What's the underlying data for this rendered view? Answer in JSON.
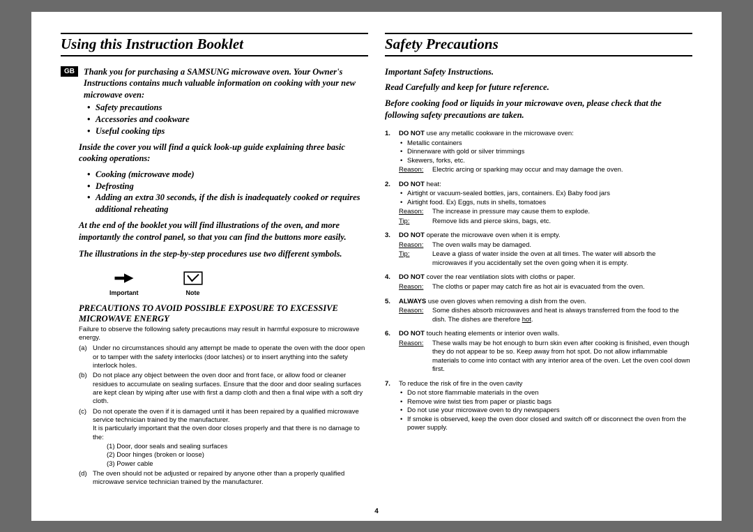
{
  "pageNumber": "4",
  "left": {
    "title": "Using this Instruction Booklet",
    "gbBadge": "GB",
    "intro": "Thank you for purchasing a SAMSUNG microwave oven. Your Owner's Instructions contains much valuable information on cooking with your new microwave oven:",
    "introBullets": [
      "Safety precautions",
      "Accessories and cookware",
      "Useful cooking tips"
    ],
    "insideCover": "Inside the cover you will find a quick look-up guide explaining three basic cooking operations:",
    "opsBullets": [
      "Cooking (microwave mode)",
      "Defrosting",
      "Adding an extra 30 seconds, if the dish is inadequately cooked or requires additional reheating"
    ],
    "endBooklet": "At the end of the booklet you will find illustrations of the oven, and more importantly the control panel, so that you can find the buttons more easily.",
    "illustrations": "The illustrations in the step-by-step procedures use two different symbols.",
    "symbolImportant": "Important",
    "symbolNote": "Note",
    "precautionsHdr": "PRECAUTIONS TO AVOID POSSIBLE EXPOSURE TO EXCESSIVE MICROWAVE ENERGY",
    "precautionsIntro": "Failure to observe the following safety precautions may result in harmful exposure to microwave energy.",
    "lettered": [
      {
        "l": "(a)",
        "t": "Under no circumstances should any attempt be made to operate the oven with the door open or to tamper with the safety interlocks (door latches) or to insert anything into the safety interlock holes."
      },
      {
        "l": "(b)",
        "t": "Do not place any object between the oven door and front face, or allow food or cleaner residues to accumulate on sealing surfaces. Ensure that the door and door sealing surfaces are kept clean by wiping after use with first a damp cloth and then a final wipe with a soft dry cloth."
      },
      {
        "l": "(c)",
        "t": "Do not operate the oven if it is damaged until it has been repaired by a qualified microwave service technician trained by the manufacturer.\nIt is particularly important that the oven door closes properly and that there is no damage to the:",
        "sub": [
          "(1) Door, door seals and sealing surfaces",
          "(2) Door hinges (broken or loose)",
          "(3) Power cable"
        ]
      },
      {
        "l": "(d)",
        "t": "The oven should not be adjusted or repaired by anyone other than a properly qualified microwave service technician trained by the manufacturer."
      }
    ]
  },
  "right": {
    "title": "Safety Precautions",
    "sub1": "Important Safety Instructions.",
    "sub2": "Read Carefully and keep for future reference.",
    "sub3": "Before cooking food or liquids in your microwave oven, please check that the following safety precautions are taken.",
    "items": [
      {
        "n": "1.",
        "lead": "<b>DO NOT</b> use any metallic cookware in the microwave oven:",
        "dots": [
          "Metallic containers",
          "Dinnerware with gold or silver trimmings",
          "Skewers, forks, etc."
        ],
        "rows": [
          {
            "l": "Reason:",
            "t": "Electric arcing or sparking may occur and may damage the oven."
          }
        ]
      },
      {
        "n": "2.",
        "lead": "<b>DO NOT</b> heat:",
        "dots": [
          "Airtight or vacuum-sealed bottles, jars, containers. Ex) Baby food jars",
          "Airtight food. Ex) Eggs, nuts in shells, tomatoes"
        ],
        "rows": [
          {
            "l": "Reason:",
            "t": "The increase in pressure may cause them to explode."
          },
          {
            "l": "Tip:",
            "t": "Remove lids and pierce skins, bags, etc."
          }
        ]
      },
      {
        "n": "3.",
        "lead": "<b>DO NOT</b> operate the microwave oven when it is empty.",
        "rows": [
          {
            "l": "Reason:",
            "t": "The oven walls may be damaged."
          },
          {
            "l": "Tip:",
            "t": "Leave a glass of water inside the oven at all times. The water will absorb the microwaves if you accidentally set the oven going when it is empty."
          }
        ]
      },
      {
        "n": "4.",
        "lead": "<b>DO NOT</b> cover the rear ventilation slots with cloths or paper.",
        "rows": [
          {
            "l": "Reason:",
            "t": "The cloths or paper may catch fire as hot air is evacuated from the oven."
          }
        ]
      },
      {
        "n": "5.",
        "lead": "<b>ALWAYS</b> use oven gloves when removing a dish from the oven.",
        "rows": [
          {
            "l": "Reason:",
            "t": "Some dishes absorb microwaves and heat is always transferred from the food to the dish. The dishes are therefore <span class=\"under\">hot</span>."
          }
        ]
      },
      {
        "n": "6.",
        "lead": "<b>DO NOT</b> touch heating elements or interior oven walls.",
        "rows": [
          {
            "l": "Reason:",
            "t": "These walls may be hot enough to burn skin even after cooking is finished, even though they do not appear to be so. Keep away from hot spot. Do not allow inflammable materials to come into contact with any interior area of the oven. Let the oven cool down first."
          }
        ]
      },
      {
        "n": "7.",
        "lead": "To reduce the risk of fire in the oven cavity",
        "dots": [
          "Do not store flammable materials in the oven",
          "Remove wire twist ties from paper or plastic bags",
          "Do not use your microwave oven to dry newspapers",
          "If smoke is observed, keep the oven door closed and switch off or disconnect the oven from the power supply."
        ]
      }
    ]
  },
  "colors": {
    "bg": "#6a6a6a",
    "paper": "#ffffff",
    "text": "#000000"
  }
}
